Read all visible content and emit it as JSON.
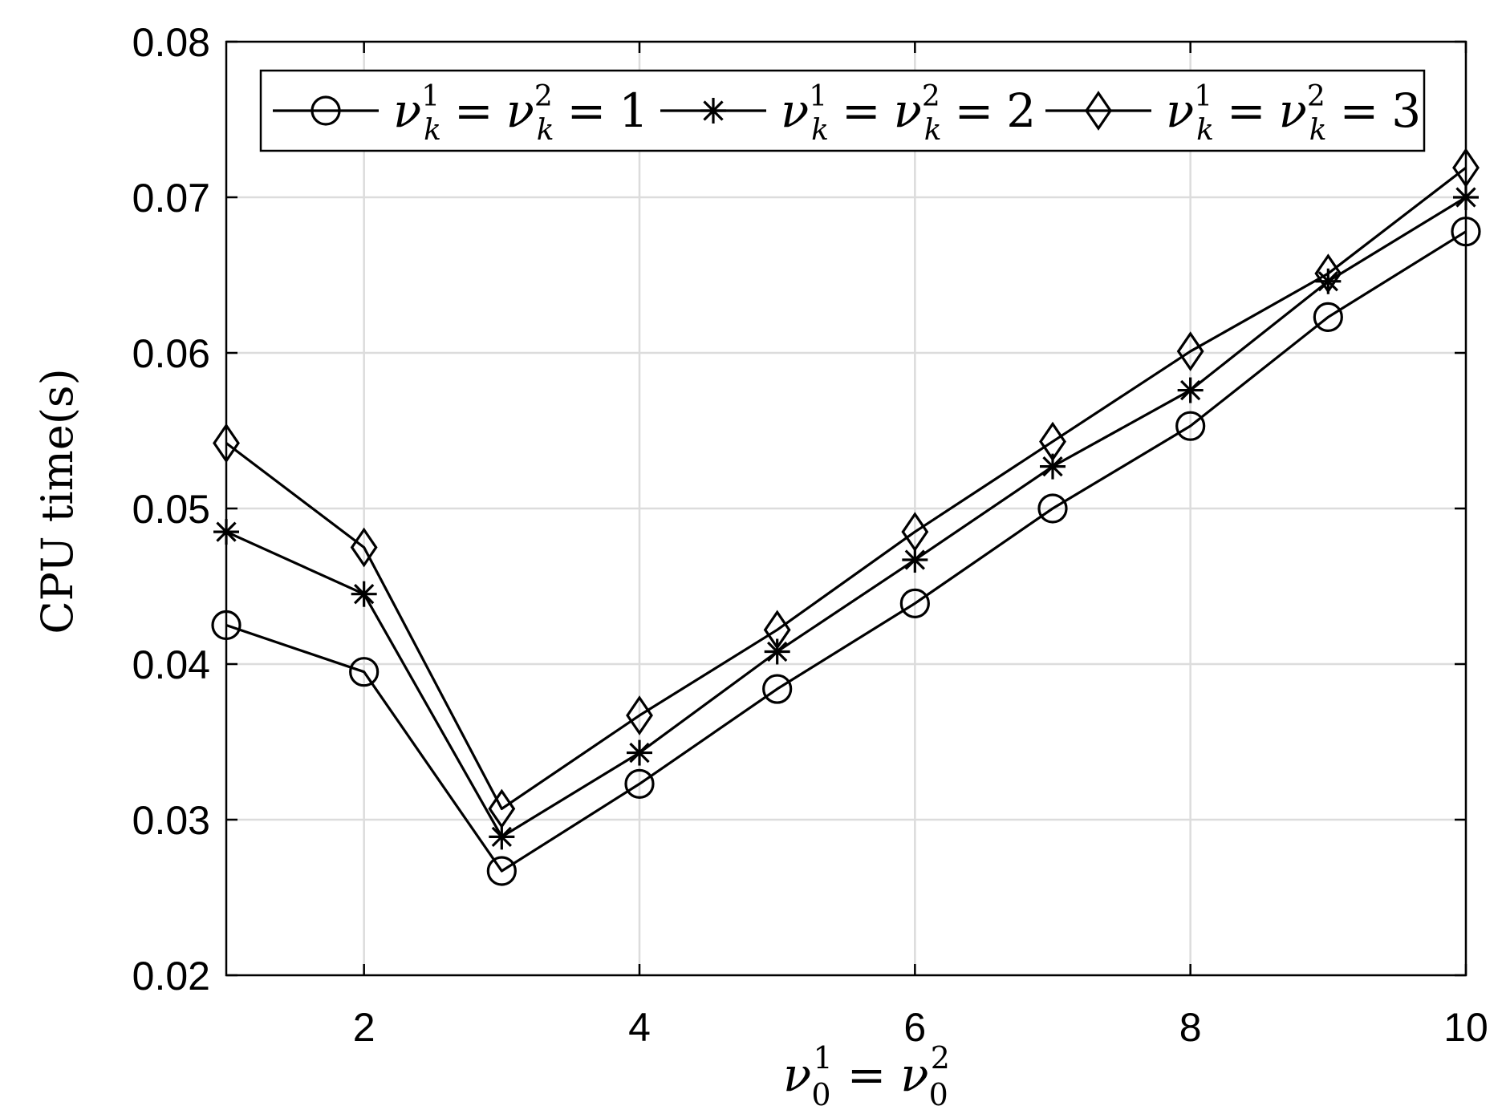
{
  "chart_data": {
    "type": "line",
    "title": "",
    "xlabel": {
      "base": "ν",
      "sub1": "0",
      "sup1": "1",
      "eq": "=",
      "sub2": "0",
      "sup2": "2"
    },
    "ylabel": "CPU time(s)",
    "xlim": [
      1,
      10
    ],
    "ylim": [
      0.02,
      0.08
    ],
    "xticks": [
      2,
      4,
      6,
      8,
      10
    ],
    "xtick_labels": [
      "2",
      "4",
      "6",
      "8",
      "10"
    ],
    "yticks": [
      0.02,
      0.03,
      0.04,
      0.05,
      0.06,
      0.07,
      0.08
    ],
    "ytick_labels": [
      "0.02",
      "0.03",
      "0.04",
      "0.05",
      "0.06",
      "0.07",
      "0.08"
    ],
    "grid": true,
    "legend_position": "top",
    "x": [
      1,
      2,
      3,
      4,
      5,
      6,
      7,
      8,
      9,
      10
    ],
    "series": [
      {
        "name": "ν_k^1 = ν_k^2 = 1",
        "label": {
          "base": "ν",
          "sub": "k",
          "sup1": "1",
          "sup2": "2",
          "eq": "=",
          "value": "1"
        },
        "marker": "circle",
        "color": "#000000",
        "values": [
          0.0425,
          0.0395,
          0.0267,
          0.0323,
          0.0384,
          0.0439,
          0.05,
          0.0553,
          0.0623,
          0.0678
        ]
      },
      {
        "name": "ν_k^1 = ν_k^2 = 2",
        "label": {
          "base": "ν",
          "sub": "k",
          "sup1": "1",
          "sup2": "2",
          "eq": "=",
          "value": "2"
        },
        "marker": "asterisk",
        "color": "#000000",
        "values": [
          0.0485,
          0.0445,
          0.0289,
          0.0343,
          0.0408,
          0.0467,
          0.0527,
          0.0576,
          0.0646,
          0.07
        ]
      },
      {
        "name": "ν_k^1 = ν_k^2 = 3",
        "label": {
          "base": "ν",
          "sub": "k",
          "sup1": "1",
          "sup2": "2",
          "eq": "=",
          "value": "3"
        },
        "marker": "diamond",
        "color": "#000000",
        "values": [
          0.0542,
          0.0475,
          0.0307,
          0.0367,
          0.0422,
          0.0485,
          0.0543,
          0.0601,
          0.0651,
          0.0719
        ]
      }
    ]
  },
  "style": {
    "grid_color": "#dcdcdc",
    "axis_color": "#000000",
    "line_color": "#000000"
  }
}
